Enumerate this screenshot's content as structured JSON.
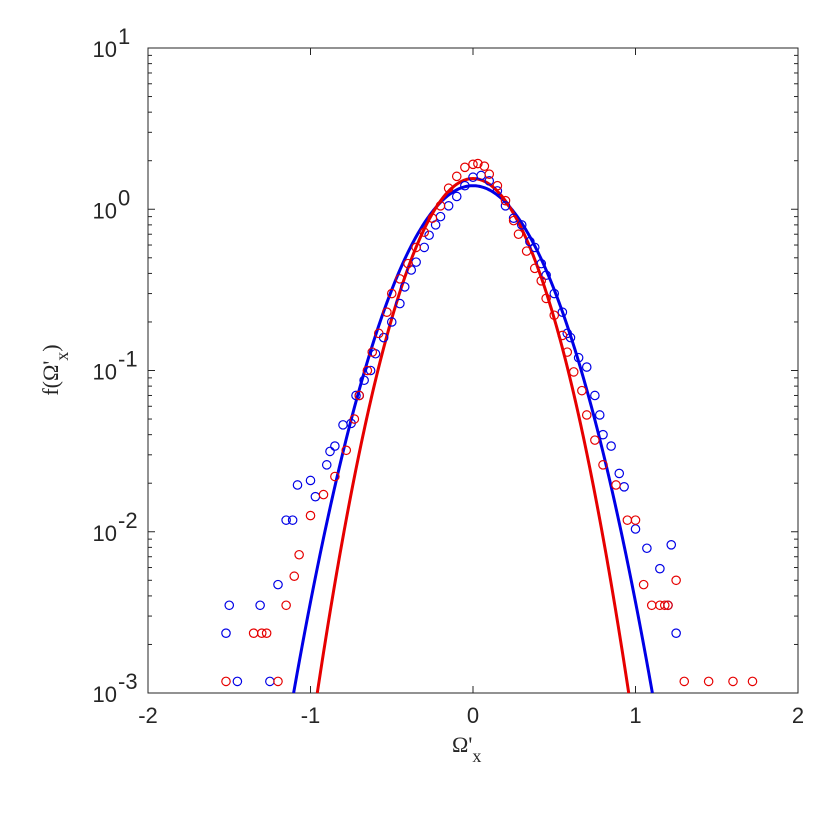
{
  "chart_data": {
    "type": "scatter",
    "title": "",
    "xlabel": "Ω'",
    "xlabel_sub": "x",
    "ylabel": "f(Ω'",
    "ylabel_sub": "x",
    "ylabel_close": ")",
    "xlim": [
      -2,
      2
    ],
    "ylim": [
      0.001,
      10
    ],
    "yscale": "log",
    "grid": false,
    "x_ticks": [
      {
        "value": -2,
        "label": "-2"
      },
      {
        "value": -1,
        "label": "-1"
      },
      {
        "value": 0,
        "label": "0"
      },
      {
        "value": 1,
        "label": "1"
      },
      {
        "value": 2,
        "label": "2"
      }
    ],
    "y_ticks": [
      {
        "value": 0.001,
        "base": "10",
        "exp": "-3"
      },
      {
        "value": 0.01,
        "base": "10",
        "exp": "-2"
      },
      {
        "value": 0.1,
        "base": "10",
        "exp": "-1"
      },
      {
        "value": 1,
        "base": "10",
        "exp": "0"
      },
      {
        "value": 10,
        "base": "10",
        "exp": "1"
      }
    ],
    "colors": {
      "blue": "#0000e6",
      "red": "#e60000",
      "axis": "#262626"
    },
    "series": [
      {
        "color": "blue",
        "kind": "markers",
        "points": [
          [
            -1.52,
            0.00235
          ],
          [
            -1.5,
            0.0035
          ],
          [
            -1.45,
            0.00118
          ],
          [
            -1.31,
            0.0035
          ],
          [
            -1.25,
            0.00118
          ],
          [
            -1.2,
            0.0047
          ],
          [
            -1.15,
            0.0118
          ],
          [
            -1.11,
            0.0118
          ],
          [
            -1.08,
            0.0195
          ],
          [
            -1.0,
            0.0208
          ],
          [
            -0.97,
            0.0165
          ],
          [
            -0.9,
            0.026
          ],
          [
            -0.88,
            0.0315
          ],
          [
            -0.85,
            0.034
          ],
          [
            -0.8,
            0.046
          ],
          [
            -0.75,
            0.047
          ],
          [
            -0.72,
            0.07
          ],
          [
            -0.7,
            0.07
          ],
          [
            -0.67,
            0.087
          ],
          [
            -0.63,
            0.1
          ],
          [
            -0.6,
            0.127
          ],
          [
            -0.55,
            0.16
          ],
          [
            -0.5,
            0.2
          ],
          [
            -0.45,
            0.26
          ],
          [
            -0.42,
            0.33
          ],
          [
            -0.38,
            0.42
          ],
          [
            -0.35,
            0.47
          ],
          [
            -0.3,
            0.58
          ],
          [
            -0.27,
            0.69
          ],
          [
            -0.23,
            0.8
          ],
          [
            -0.2,
            0.9
          ],
          [
            -0.15,
            1.05
          ],
          [
            -0.1,
            1.2
          ],
          [
            -0.05,
            1.4
          ],
          [
            0.0,
            1.58
          ],
          [
            0.05,
            1.62
          ],
          [
            0.1,
            1.5
          ],
          [
            0.15,
            1.3
          ],
          [
            0.2,
            1.05
          ],
          [
            0.25,
            0.88
          ],
          [
            0.3,
            0.8
          ],
          [
            0.35,
            0.63
          ],
          [
            0.38,
            0.58
          ],
          [
            0.42,
            0.46
          ],
          [
            0.45,
            0.39
          ],
          [
            0.5,
            0.3
          ],
          [
            0.55,
            0.23
          ],
          [
            0.58,
            0.17
          ],
          [
            0.6,
            0.16
          ],
          [
            0.65,
            0.12
          ],
          [
            0.7,
            0.105
          ],
          [
            0.75,
            0.07
          ],
          [
            0.78,
            0.053
          ],
          [
            0.8,
            0.04
          ],
          [
            0.85,
            0.034
          ],
          [
            0.9,
            0.023
          ],
          [
            0.93,
            0.019
          ],
          [
            1.0,
            0.0104
          ],
          [
            1.07,
            0.0079
          ],
          [
            1.15,
            0.0059
          ],
          [
            1.2,
            0.0035
          ],
          [
            1.22,
            0.0083
          ],
          [
            1.25,
            0.00235
          ]
        ]
      },
      {
        "color": "red",
        "kind": "markers",
        "points": [
          [
            -1.52,
            0.00118
          ],
          [
            -1.35,
            0.00235
          ],
          [
            -1.3,
            0.00235
          ],
          [
            -1.27,
            0.00235
          ],
          [
            -1.2,
            0.00118
          ],
          [
            -1.15,
            0.0035
          ],
          [
            -1.1,
            0.0053
          ],
          [
            -1.07,
            0.0072
          ],
          [
            -1.0,
            0.0126
          ],
          [
            -0.92,
            0.017
          ],
          [
            -0.85,
            0.022
          ],
          [
            -0.78,
            0.032
          ],
          [
            -0.73,
            0.05
          ],
          [
            -0.7,
            0.07
          ],
          [
            -0.65,
            0.1
          ],
          [
            -0.62,
            0.13
          ],
          [
            -0.58,
            0.17
          ],
          [
            -0.53,
            0.23
          ],
          [
            -0.5,
            0.3
          ],
          [
            -0.45,
            0.37
          ],
          [
            -0.4,
            0.46
          ],
          [
            -0.35,
            0.58
          ],
          [
            -0.3,
            0.72
          ],
          [
            -0.25,
            0.88
          ],
          [
            -0.2,
            1.05
          ],
          [
            -0.15,
            1.35
          ],
          [
            -0.1,
            1.6
          ],
          [
            -0.05,
            1.82
          ],
          [
            0.0,
            1.9
          ],
          [
            0.03,
            1.92
          ],
          [
            0.07,
            1.85
          ],
          [
            0.1,
            1.65
          ],
          [
            0.15,
            1.4
          ],
          [
            0.2,
            1.13
          ],
          [
            0.25,
            0.85
          ],
          [
            0.28,
            0.7
          ],
          [
            0.33,
            0.55
          ],
          [
            0.38,
            0.43
          ],
          [
            0.42,
            0.36
          ],
          [
            0.45,
            0.28
          ],
          [
            0.5,
            0.22
          ],
          [
            0.55,
            0.165
          ],
          [
            0.58,
            0.13
          ],
          [
            0.62,
            0.098
          ],
          [
            0.67,
            0.075
          ],
          [
            0.7,
            0.053
          ],
          [
            0.75,
            0.037
          ],
          [
            0.8,
            0.026
          ],
          [
            0.88,
            0.0195
          ],
          [
            0.95,
            0.0118
          ],
          [
            1.0,
            0.0118
          ],
          [
            1.05,
            0.0047
          ],
          [
            1.1,
            0.0035
          ],
          [
            1.15,
            0.0035
          ],
          [
            1.18,
            0.0035
          ],
          [
            1.2,
            0.0035
          ],
          [
            1.25,
            0.005
          ],
          [
            1.3,
            0.00118
          ],
          [
            1.45,
            0.00118
          ],
          [
            1.6,
            0.00118
          ],
          [
            1.72,
            0.00118
          ]
        ]
      },
      {
        "color": "blue",
        "kind": "curve",
        "peak": 1.4,
        "width": 0.29
      },
      {
        "color": "red",
        "kind": "curve",
        "peak": 1.55,
        "width": 0.25
      }
    ]
  }
}
